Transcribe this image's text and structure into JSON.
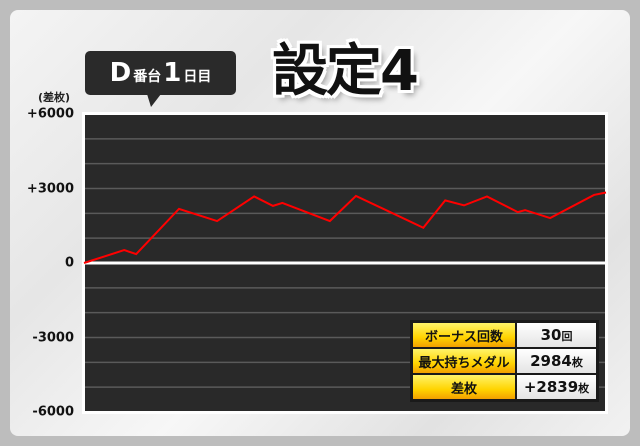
{
  "header": {
    "machine_label": "D",
    "machine_suffix": "番台",
    "day_number": "1",
    "day_suffix": "日目",
    "title": "設定4"
  },
  "stats": {
    "rows": [
      {
        "label": "ボーナス回数",
        "value": "30",
        "unit": "回"
      },
      {
        "label": "最大持ちメダル",
        "value": "2984",
        "unit": "枚"
      },
      {
        "label": "差枚",
        "value": "+2839",
        "unit": "枚"
      }
    ]
  },
  "chart_data": {
    "type": "line",
    "ylabel": "(差枚)",
    "ylim": [
      -6000,
      6000
    ],
    "yticks": [
      6000,
      3000,
      0,
      -3000,
      -6000
    ],
    "ytick_labels": [
      "+6000",
      "+3000",
      "0",
      "-3000",
      "-6000"
    ],
    "grid_step": 1000,
    "grid": true,
    "line_color": "#ff0000",
    "background": "#292929",
    "series": [
      {
        "points": [
          [
            0,
            0
          ],
          [
            7.7,
            520
          ],
          [
            10,
            360
          ],
          [
            18.2,
            2180
          ],
          [
            25.5,
            1690
          ],
          [
            32.6,
            2680
          ],
          [
            36.2,
            2300
          ],
          [
            38,
            2420
          ],
          [
            47.1,
            1690
          ],
          [
            52.1,
            2700
          ],
          [
            65,
            1420
          ],
          [
            69.2,
            2520
          ],
          [
            72.8,
            2320
          ],
          [
            77.2,
            2680
          ],
          [
            83.1,
            2050
          ],
          [
            84.5,
            2130
          ],
          [
            89.3,
            1810
          ],
          [
            97.7,
            2740
          ],
          [
            100,
            2839
          ]
        ]
      }
    ]
  }
}
